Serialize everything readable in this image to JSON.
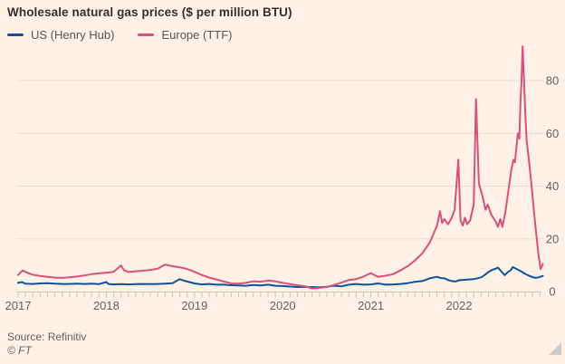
{
  "header": {
    "title": "Wholesale natural gas prices ($ per million BTU)"
  },
  "legend": {
    "items": [
      {
        "label": "US (Henry Hub)",
        "color": "#0f5499"
      },
      {
        "label": "Europe (TTF)",
        "color": "#d6517b"
      }
    ]
  },
  "footer": {
    "source": "Source: Refinitiv",
    "copyright": "© FT"
  },
  "icons": {
    "resize_handle": "corner-resize-triangle"
  },
  "colors": {
    "background": "#fff1e5",
    "title_text": "#33302e",
    "axis_text": "#66605c",
    "gridline": "#e7decd",
    "axis_line": "#cfc6b8",
    "us_line": "#0f5499",
    "europe_line": "#d6517b"
  },
  "chart_data": {
    "type": "line",
    "title": "Wholesale natural gas prices ($ per million BTU)",
    "xlabel": "",
    "ylabel": "$ per million BTU",
    "x_encoding": "months since Jan 2017 (0 = Jan 2017, 71.4 ≈ Nov 2022)",
    "x_axis": {
      "tick_labels": [
        "2017",
        "2018",
        "2019",
        "2020",
        "2021",
        "2022"
      ],
      "minor_ticks": "monthly",
      "range_months": [
        0,
        72
      ]
    },
    "y_axis": {
      "ticks": [
        0,
        20,
        40,
        60,
        80
      ],
      "range": [
        0,
        96
      ],
      "side": "right"
    },
    "grid": "horizontal-only",
    "legend_position": "top-left",
    "series": [
      {
        "name": "US (Henry Hub)",
        "color": "#0f5499",
        "points": [
          [
            0,
            3.3
          ],
          [
            0.5,
            3.6
          ],
          [
            1,
            3.0
          ],
          [
            2,
            2.9
          ],
          [
            3,
            3.1
          ],
          [
            4,
            3.2
          ],
          [
            5,
            3.0
          ],
          [
            6,
            2.9
          ],
          [
            7,
            2.9
          ],
          [
            8,
            3.0
          ],
          [
            9,
            2.9
          ],
          [
            10,
            3.0
          ],
          [
            11,
            2.8
          ],
          [
            12,
            3.6
          ],
          [
            12.3,
            2.9
          ],
          [
            13,
            2.7
          ],
          [
            14,
            2.8
          ],
          [
            15,
            2.7
          ],
          [
            16,
            2.8
          ],
          [
            17,
            2.9
          ],
          [
            18,
            2.8
          ],
          [
            19,
            2.9
          ],
          [
            20,
            3.0
          ],
          [
            21,
            3.2
          ],
          [
            22,
            4.7
          ],
          [
            22.5,
            4.2
          ],
          [
            23,
            3.8
          ],
          [
            24,
            3.1
          ],
          [
            25,
            2.7
          ],
          [
            26,
            2.9
          ],
          [
            27,
            2.6
          ],
          [
            28,
            2.6
          ],
          [
            29,
            2.4
          ],
          [
            30,
            2.3
          ],
          [
            31,
            2.2
          ],
          [
            32,
            2.5
          ],
          [
            33,
            2.3
          ],
          [
            34,
            2.6
          ],
          [
            35,
            2.2
          ],
          [
            36,
            2.1
          ],
          [
            37,
            1.9
          ],
          [
            38,
            1.7
          ],
          [
            39,
            1.7
          ],
          [
            40,
            1.7
          ],
          [
            41,
            1.6
          ],
          [
            42,
            1.8
          ],
          [
            43,
            2.2
          ],
          [
            44,
            2.0
          ],
          [
            45,
            2.6
          ],
          [
            46,
            2.9
          ],
          [
            47,
            2.6
          ],
          [
            48,
            2.7
          ],
          [
            49,
            3.1
          ],
          [
            50,
            2.6
          ],
          [
            51,
            2.7
          ],
          [
            52,
            2.9
          ],
          [
            53,
            3.2
          ],
          [
            54,
            3.7
          ],
          [
            55,
            4.0
          ],
          [
            56,
            5.0
          ],
          [
            57,
            5.6
          ],
          [
            57.5,
            5.1
          ],
          [
            58,
            5.0
          ],
          [
            58.5,
            4.4
          ],
          [
            59,
            4.0
          ],
          [
            59.5,
            3.8
          ],
          [
            60,
            4.3
          ],
          [
            61,
            4.5
          ],
          [
            62,
            4.7
          ],
          [
            63,
            5.4
          ],
          [
            63.5,
            6.3
          ],
          [
            64,
            7.4
          ],
          [
            64.5,
            8.2
          ],
          [
            65,
            8.7
          ],
          [
            65.3,
            9.1
          ],
          [
            65.7,
            7.8
          ],
          [
            66.2,
            6.2
          ],
          [
            66.6,
            7.3
          ],
          [
            67,
            8.0
          ],
          [
            67.3,
            9.3
          ],
          [
            67.8,
            8.6
          ],
          [
            68.3,
            7.9
          ],
          [
            69,
            6.7
          ],
          [
            69.5,
            6.0
          ],
          [
            70,
            5.5
          ],
          [
            70.4,
            5.2
          ],
          [
            70.8,
            5.4
          ],
          [
            71.4,
            5.9
          ]
        ]
      },
      {
        "name": "Europe (TTF)",
        "color": "#d6517b",
        "points": [
          [
            0,
            6.3
          ],
          [
            0.6,
            8.0
          ],
          [
            1.2,
            7.2
          ],
          [
            2,
            6.4
          ],
          [
            3,
            5.9
          ],
          [
            4,
            5.6
          ],
          [
            5,
            5.3
          ],
          [
            6,
            5.2
          ],
          [
            7,
            5.4
          ],
          [
            8,
            5.7
          ],
          [
            9,
            6.1
          ],
          [
            10,
            6.6
          ],
          [
            11,
            6.9
          ],
          [
            12,
            7.1
          ],
          [
            13,
            7.5
          ],
          [
            14,
            9.9
          ],
          [
            14.4,
            8.1
          ],
          [
            15,
            7.4
          ],
          [
            16,
            7.7
          ],
          [
            17,
            7.9
          ],
          [
            18,
            8.2
          ],
          [
            19,
            8.7
          ],
          [
            20,
            10.2
          ],
          [
            21,
            9.6
          ],
          [
            22,
            9.2
          ],
          [
            23,
            8.6
          ],
          [
            24,
            7.5
          ],
          [
            25,
            6.3
          ],
          [
            26,
            5.3
          ],
          [
            27,
            4.6
          ],
          [
            28,
            3.8
          ],
          [
            29,
            3.1
          ],
          [
            30,
            3.0
          ],
          [
            31,
            3.3
          ],
          [
            32,
            3.9
          ],
          [
            33,
            3.7
          ],
          [
            34,
            4.2
          ],
          [
            35,
            3.9
          ],
          [
            36,
            3.3
          ],
          [
            37,
            2.8
          ],
          [
            38,
            2.4
          ],
          [
            39,
            2.0
          ],
          [
            40,
            1.2
          ],
          [
            41,
            1.4
          ],
          [
            42,
            1.7
          ],
          [
            43,
            2.5
          ],
          [
            44,
            3.4
          ],
          [
            45,
            4.4
          ],
          [
            46,
            4.7
          ],
          [
            47,
            5.7
          ],
          [
            48,
            7.0
          ],
          [
            48.5,
            6.2
          ],
          [
            49,
            5.6
          ],
          [
            50,
            6.0
          ],
          [
            51,
            6.6
          ],
          [
            52,
            8.0
          ],
          [
            53,
            9.6
          ],
          [
            54,
            11.8
          ],
          [
            55,
            14.5
          ],
          [
            56,
            18.5
          ],
          [
            57,
            25.0
          ],
          [
            57.4,
            30.5
          ],
          [
            57.7,
            26.0
          ],
          [
            58,
            27.5
          ],
          [
            58.5,
            25.5
          ],
          [
            59,
            28.0
          ],
          [
            59.4,
            31.0
          ],
          [
            59.9,
            50.0
          ],
          [
            60.2,
            27.0
          ],
          [
            60.5,
            25.0
          ],
          [
            60.8,
            28.0
          ],
          [
            61.1,
            25.5
          ],
          [
            61.5,
            27.0
          ],
          [
            62,
            33.0
          ],
          [
            62.3,
            73.0
          ],
          [
            62.7,
            41.0
          ],
          [
            63.2,
            36.0
          ],
          [
            63.6,
            31.0
          ],
          [
            63.9,
            33.0
          ],
          [
            64.4,
            29.0
          ],
          [
            65,
            26.5
          ],
          [
            65.3,
            24.5
          ],
          [
            65.6,
            27.5
          ],
          [
            65.9,
            24.5
          ],
          [
            66.3,
            30.0
          ],
          [
            66.8,
            40.0
          ],
          [
            67.1,
            46.0
          ],
          [
            67.4,
            50.0
          ],
          [
            67.6,
            49.0
          ],
          [
            68,
            60.0
          ],
          [
            68.2,
            58.0
          ],
          [
            68.35,
            72.0
          ],
          [
            68.5,
            80.0
          ],
          [
            68.65,
            93.0
          ],
          [
            68.8,
            83.0
          ],
          [
            69,
            68.0
          ],
          [
            69.2,
            57.0
          ],
          [
            69.5,
            50.0
          ],
          [
            69.9,
            39.0
          ],
          [
            70.2,
            30.0
          ],
          [
            70.5,
            22.0
          ],
          [
            70.8,
            14.0
          ],
          [
            71.1,
            8.5
          ],
          [
            71.4,
            10.5
          ]
        ]
      }
    ]
  }
}
